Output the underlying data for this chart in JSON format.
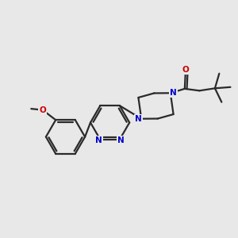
{
  "background_color": "#e8e8e8",
  "bond_color": "#2a2a2a",
  "nitrogen_color": "#0000cc",
  "oxygen_color": "#cc0000",
  "line_width": 1.6,
  "figsize": [
    3.0,
    3.0
  ],
  "dpi": 100,
  "xlim": [
    0,
    10
  ],
  "ylim": [
    0,
    10
  ]
}
